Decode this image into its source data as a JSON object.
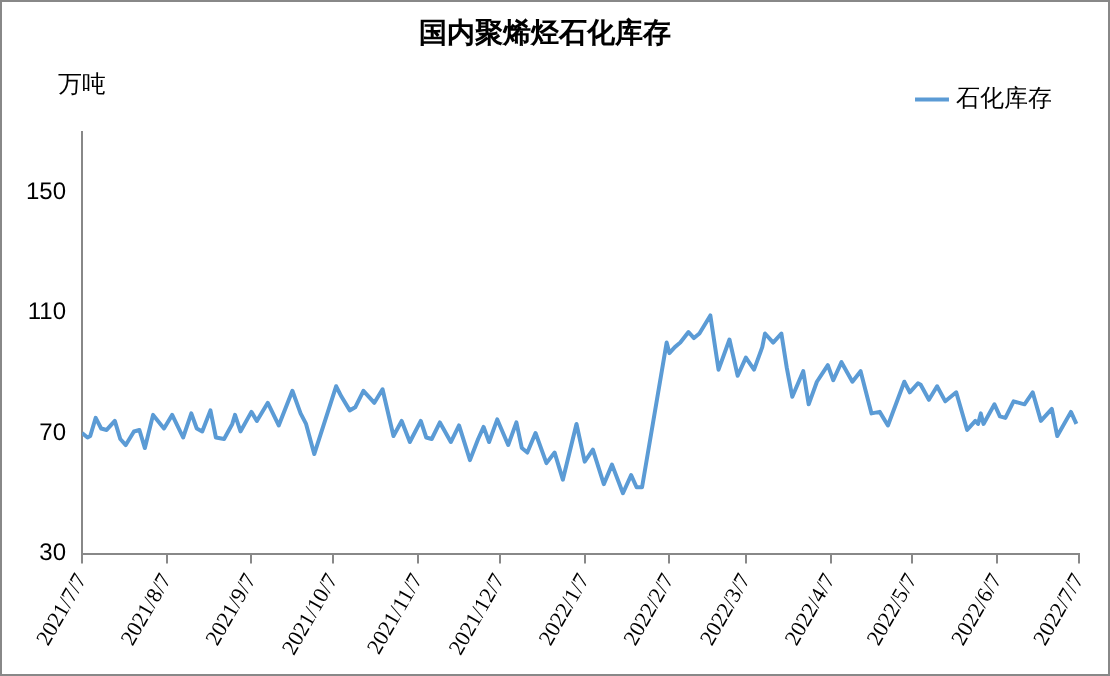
{
  "chart_data": {
    "type": "line",
    "title": "国内聚烯烃石化库存",
    "ylabel": "万吨",
    "x": [
      "2021-07-07",
      "2021-07-09",
      "2021-07-10",
      "2021-07-12",
      "2021-07-14",
      "2021-07-16",
      "2021-07-19",
      "2021-07-21",
      "2021-07-23",
      "2021-07-26",
      "2021-07-28",
      "2021-07-30",
      "2021-08-02",
      "2021-08-06",
      "2021-08-09",
      "2021-08-13",
      "2021-08-16",
      "2021-08-18",
      "2021-08-20",
      "2021-08-23",
      "2021-08-25",
      "2021-08-28",
      "2021-08-31",
      "2021-09-01",
      "2021-09-03",
      "2021-09-07",
      "2021-09-09",
      "2021-09-13",
      "2021-09-17",
      "2021-09-22",
      "2021-09-25",
      "2021-09-27",
      "2021-09-30",
      "2021-10-08",
      "2021-10-10",
      "2021-10-13",
      "2021-10-15",
      "2021-10-18",
      "2021-10-20",
      "2021-10-22",
      "2021-10-25",
      "2021-10-29",
      "2021-11-01",
      "2021-11-04",
      "2021-11-08",
      "2021-11-10",
      "2021-11-12",
      "2021-11-15",
      "2021-11-19",
      "2021-11-22",
      "2021-11-26",
      "2021-11-29",
      "2021-12-01",
      "2021-12-03",
      "2021-12-06",
      "2021-12-10",
      "2021-12-13",
      "2021-12-15",
      "2021-12-17",
      "2021-12-20",
      "2021-12-24",
      "2021-12-27",
      "2021-12-30",
      "2022-01-04",
      "2022-01-07",
      "2022-01-10",
      "2022-01-14",
      "2022-01-17",
      "2022-01-21",
      "2022-01-24",
      "2022-01-26",
      "2022-01-28",
      "2022-02-06",
      "2022-02-07",
      "2022-02-09",
      "2022-02-11",
      "2022-02-14",
      "2022-02-16",
      "2022-02-18",
      "2022-02-22",
      "2022-02-25",
      "2022-03-01",
      "2022-03-04",
      "2022-03-07",
      "2022-03-10",
      "2022-03-13",
      "2022-03-14",
      "2022-03-17",
      "2022-03-20",
      "2022-03-22",
      "2022-03-24",
      "2022-03-28",
      "2022-03-30",
      "2022-04-02",
      "2022-04-06",
      "2022-04-08",
      "2022-04-11",
      "2022-04-15",
      "2022-04-18",
      "2022-04-22",
      "2022-04-25",
      "2022-04-28",
      "2022-05-04",
      "2022-05-06",
      "2022-05-09",
      "2022-05-10",
      "2022-05-13",
      "2022-05-16",
      "2022-05-19",
      "2022-05-23",
      "2022-05-27",
      "2022-05-30",
      "2022-05-31",
      "2022-06-01",
      "2022-06-02",
      "2022-06-06",
      "2022-06-08",
      "2022-06-10",
      "2022-06-13",
      "2022-06-17",
      "2022-06-20",
      "2022-06-23",
      "2022-06-27",
      "2022-06-29",
      "2022-07-04",
      "2022-07-06"
    ],
    "series": [
      {
        "name": "石化库存",
        "color": "#5b9bd5",
        "values": [
          70,
          68.5,
          69,
          75,
          71.5,
          71,
          74,
          68,
          66,
          70.5,
          71,
          65,
          76,
          71.5,
          76,
          68.5,
          76.5,
          71.5,
          70.5,
          77.5,
          68.5,
          68,
          73,
          76,
          70.5,
          77,
          74,
          80,
          72.5,
          84,
          76.5,
          73,
          63,
          85.5,
          82,
          77.5,
          78.5,
          84,
          82,
          80,
          84.5,
          69,
          74,
          67,
          74,
          68.5,
          68,
          73.5,
          67,
          72.5,
          61,
          68,
          72,
          67,
          74.5,
          66,
          73.5,
          65,
          63.5,
          70,
          60,
          63.5,
          54.5,
          73,
          60.5,
          64.5,
          53,
          59.5,
          50,
          56,
          52,
          52,
          100,
          96.5,
          98.5,
          100,
          103.5,
          101.5,
          103,
          109,
          91,
          101,
          89,
          95,
          91,
          98.5,
          103,
          100,
          103,
          91.5,
          82,
          90.5,
          79.5,
          87,
          92.5,
          87.5,
          93.5,
          87,
          90.5,
          76.5,
          77,
          72.5,
          87,
          83.5,
          86.5,
          86,
          81,
          85.5,
          80.5,
          83.5,
          71,
          74,
          73,
          76.5,
          73,
          79.5,
          75.5,
          75,
          80.5,
          79.5,
          83.5,
          74,
          78,
          69,
          77,
          73
        ]
      }
    ],
    "xlim": [
      "2021-07-07",
      "2022-07-07"
    ],
    "xticks": [
      {
        "value": "2021-07-07",
        "label": "2021/7/7"
      },
      {
        "value": "2021-08-07",
        "label": "2021/8/7"
      },
      {
        "value": "2021-09-07",
        "label": "2021/9/7"
      },
      {
        "value": "2021-10-07",
        "label": "2021/10/7"
      },
      {
        "value": "2021-11-07",
        "label": "2021/11/7"
      },
      {
        "value": "2021-12-07",
        "label": "2021/12/7"
      },
      {
        "value": "2022-01-07",
        "label": "2022/1/7"
      },
      {
        "value": "2022-02-07",
        "label": "2022/2/7"
      },
      {
        "value": "2022-03-07",
        "label": "2022/3/7"
      },
      {
        "value": "2022-04-07",
        "label": "2022/4/7"
      },
      {
        "value": "2022-05-07",
        "label": "2022/5/7"
      },
      {
        "value": "2022-06-07",
        "label": "2022/6/7"
      },
      {
        "value": "2022-07-07",
        "label": "2022/7/7"
      }
    ],
    "ylim": [
      30,
      170
    ],
    "yticks": [
      30,
      70,
      110,
      150
    ],
    "grid": false,
    "legend": "top right",
    "marker": "none",
    "line_style": "solid"
  }
}
